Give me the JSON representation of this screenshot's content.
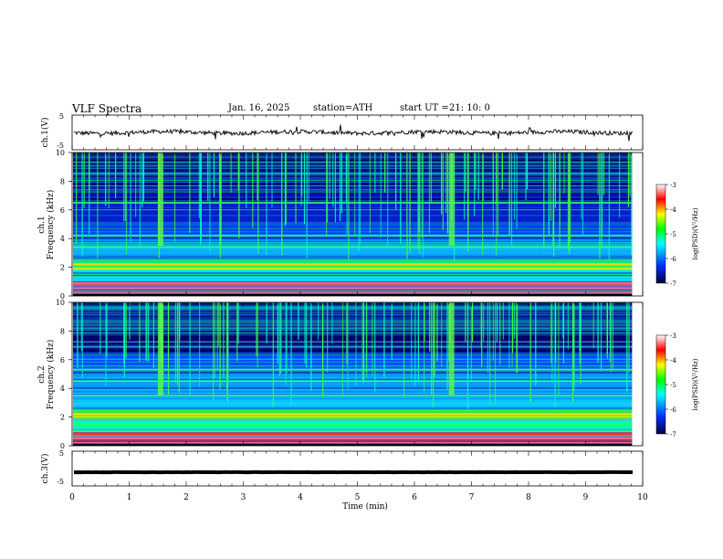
{
  "header": {
    "title": "VLF  Spectra",
    "date": "Jan. 16, 2025",
    "station": "station=ATH",
    "start_label": "start  UT  =",
    "start_time": "21: 10: 0"
  },
  "colors": {
    "spectrum_low": "#000040",
    "spectrum_mid_low": "#0030ff",
    "spectrum_mid": "#00ffff",
    "spectrum_mid_high": "#00ff00",
    "spectrum_high": "#ffff00",
    "spectrum_peak": "#ff0000",
    "spectrum_top": "#ffffff",
    "trace": "#000000"
  },
  "chart_data": [
    {
      "type": "line",
      "name": "channel-1-waveform",
      "ylabel": "ch.1(V)",
      "ylim": [
        -5,
        5
      ],
      "y_ticks": [
        "5",
        "-5"
      ],
      "xlim": [
        0,
        10
      ],
      "baseline": 0,
      "noise_amplitude": 0.6
    },
    {
      "type": "heatmap",
      "name": "channel-1-spectrogram",
      "ylabel": "ch.1\nFrequency (kHz)",
      "ylabel_lines": [
        "ch.1",
        "Frequency (kHz)"
      ],
      "ylim": [
        0,
        10
      ],
      "y_ticks": [
        "0",
        "2",
        "4",
        "6",
        "8",
        "10"
      ],
      "xlim": [
        0,
        10
      ],
      "colorbar": {
        "label": "log(PSD)(V²/Hz)",
        "range": [
          -7,
          -3
        ],
        "ticks": [
          "-3",
          "-4",
          "-5",
          "-6",
          "-7"
        ]
      },
      "tones_khz": [
        0.2,
        0.55,
        0.9,
        1.3,
        1.9,
        2.2,
        3.4,
        4.2,
        6.5
      ],
      "bursts_min": [
        1.55,
        6.65
      ]
    },
    {
      "type": "heatmap",
      "name": "channel-2-spectrogram",
      "ylabel": "ch.2\nFrequency (kHz)",
      "ylabel_lines": [
        "ch.2",
        "Frequency (kHz)"
      ],
      "ylim": [
        0,
        10
      ],
      "y_ticks": [
        "0",
        "2",
        "4",
        "6",
        "8",
        "10"
      ],
      "xlim": [
        0,
        10
      ],
      "colorbar": {
        "label": "log(PSD)(V²/Hz)",
        "range": [
          -7,
          -3
        ],
        "ticks": [
          "-3",
          "-4",
          "-5",
          "-6",
          "-7"
        ]
      },
      "tones_khz": [
        0.2,
        0.5,
        1.0,
        1.5,
        2.0,
        2.2,
        3.5,
        4.5,
        5.3
      ],
      "bursts_min": [
        1.55,
        6.65
      ]
    },
    {
      "type": "line",
      "name": "channel-3-waveform",
      "ylabel": "ch.3(V)",
      "ylim": [
        -5,
        5
      ],
      "y_ticks": [
        "5",
        "-5"
      ],
      "xlim": [
        0,
        10
      ],
      "baseline": 0,
      "noise_amplitude": 0.05
    }
  ],
  "x_axis": {
    "label": "Time  (min)",
    "ticks": [
      "0",
      "1",
      "2",
      "3",
      "4",
      "5",
      "6",
      "7",
      "8",
      "9",
      "10"
    ],
    "data_end_min": 9.83
  }
}
